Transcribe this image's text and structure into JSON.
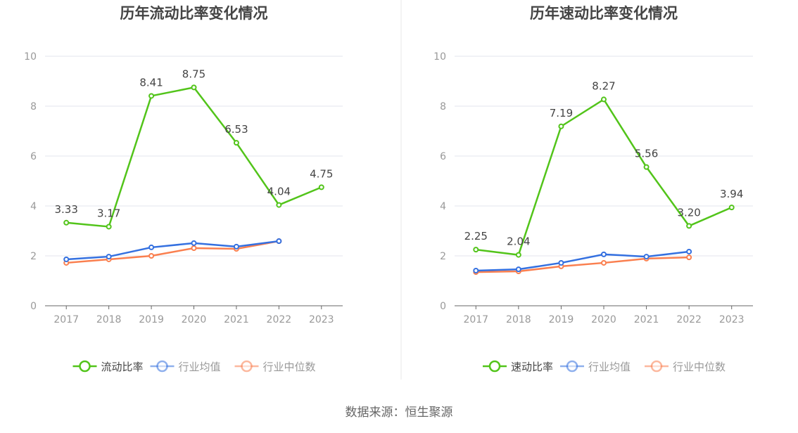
{
  "source": "数据来源：恒生聚源",
  "chart_data": [
    {
      "type": "line",
      "title": "历年流动比率变化情况",
      "categories": [
        "2017",
        "2018",
        "2019",
        "2020",
        "2021",
        "2022",
        "2023"
      ],
      "ylim": [
        0,
        10
      ],
      "yticks": [
        "0",
        "2",
        "4",
        "6",
        "8",
        "10"
      ],
      "grid": true,
      "legend_position": "bottom",
      "series": [
        {
          "name": "流动比率",
          "color": "#52c41a",
          "values": [
            3.33,
            3.17,
            8.41,
            8.75,
            6.53,
            4.04,
            4.75
          ],
          "labels": [
            "3.33",
            "3.17",
            "8.41",
            "8.75",
            "6.53",
            "4.04",
            "4.75"
          ]
        },
        {
          "name": "行业均值",
          "color": "#3470e0",
          "values": [
            1.86,
            1.97,
            2.34,
            2.51,
            2.37,
            2.59,
            null
          ]
        },
        {
          "name": "行业中位数",
          "color": "#fa7f4f",
          "values": [
            1.72,
            1.86,
            2.0,
            2.31,
            2.28,
            2.59,
            null
          ]
        }
      ]
    },
    {
      "type": "line",
      "title": "历年速动比率变化情况",
      "categories": [
        "2017",
        "2018",
        "2019",
        "2020",
        "2021",
        "2022",
        "2023"
      ],
      "ylim": [
        0,
        10
      ],
      "yticks": [
        "0",
        "2",
        "4",
        "6",
        "8",
        "10"
      ],
      "grid": true,
      "legend_position": "bottom",
      "series": [
        {
          "name": "速动比率",
          "color": "#52c41a",
          "values": [
            2.25,
            2.04,
            7.19,
            8.27,
            5.56,
            3.2,
            3.94
          ],
          "labels": [
            "2.25",
            "2.04",
            "7.19",
            "8.27",
            "5.56",
            "3.20",
            "3.94"
          ]
        },
        {
          "name": "行业均值",
          "color": "#3470e0",
          "values": [
            1.41,
            1.46,
            1.72,
            2.06,
            1.97,
            2.17,
            null
          ]
        },
        {
          "name": "行业中位数",
          "color": "#fa7f4f",
          "values": [
            1.35,
            1.38,
            1.58,
            1.72,
            1.89,
            1.94,
            null
          ]
        }
      ]
    }
  ]
}
